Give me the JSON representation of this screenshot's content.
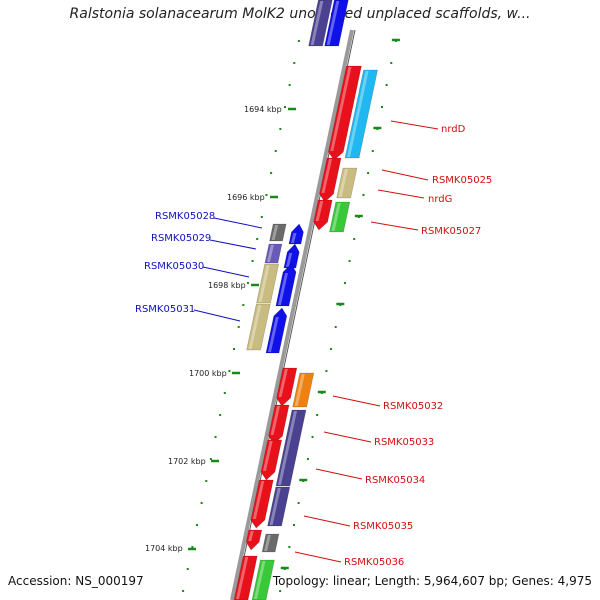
{
  "title": "Ralstonia solanacearum MolK2 unordered unplaced scaffolds, w...",
  "footer": {
    "accession": "Accession: NS_000197",
    "summary": "Topology: linear; Length: 5,964,607 bp; Genes: 4,975"
  },
  "kbp_ticks": [
    "1694 kbp",
    "1696 kbp",
    "1698 kbp",
    "1700 kbp",
    "1702 kbp",
    "1704 kbp"
  ],
  "gene_labels_left": [
    "RSMK05028",
    "RSMK05029",
    "RSMK05030",
    "RSMK05031"
  ],
  "gene_labels_right": [
    "nrdD",
    "RSMK05025",
    "nrdG",
    "RSMK05027",
    "RSMK05032",
    "RSMK05033",
    "RSMK05034",
    "RSMK05035",
    "RSMK05036"
  ],
  "colors": {
    "forward_strand": "#e8101a",
    "reverse_strand": "#1010e8",
    "cyan": "#20b8f0",
    "khaki": "#c8bc80",
    "green": "#38c838",
    "orange": "#f08010",
    "slate": "#4a4290",
    "gray": "#6a6a6a",
    "lavender": "#6a5ab8",
    "right_label": "#d01010",
    "left_label": "#1010c0",
    "tick_green": "#1a8a1a",
    "backbone": "#8a8a8a"
  }
}
